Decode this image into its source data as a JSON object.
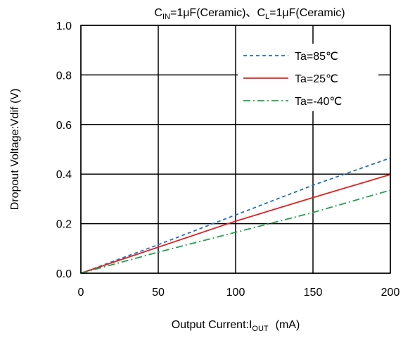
{
  "chart_data": {
    "type": "line",
    "title_parts": {
      "cin_prefix": "C",
      "cin_sub": "IN",
      "cin_value": "=1μF(Ceramic)",
      "separator": "、",
      "cl_prefix": "C",
      "cl_sub": "L",
      "cl_value": "=1μF(Ceramic)"
    },
    "xlabel_parts": {
      "text": "Output Current:I",
      "sub": "OUT",
      "unit": "(mA)"
    },
    "ylabel": "Dropout Voltage:Vdif  (V)",
    "xlim": [
      0,
      200
    ],
    "ylim": [
      0,
      1.0
    ],
    "x_ticks": [
      0,
      50,
      100,
      150,
      200
    ],
    "y_ticks": [
      0.0,
      0.2,
      0.4,
      0.6,
      0.8,
      1.0
    ],
    "x_tick_labels": [
      "0",
      "50",
      "100",
      "150",
      "200"
    ],
    "y_tick_labels": [
      "0.0",
      "0.2",
      "0.4",
      "0.6",
      "0.8",
      "1.0"
    ],
    "grid": true,
    "legend_position": "top-right",
    "series": [
      {
        "name": "Ta=85℃",
        "color": "#1f6fc5",
        "dash": "dashed",
        "x": [
          0,
          50,
          100,
          150,
          200
        ],
        "y": [
          0,
          0.115,
          0.235,
          0.355,
          0.465
        ]
      },
      {
        "name": "Ta=25℃",
        "color": "#e02020",
        "dash": "solid",
        "x": [
          0,
          50,
          100,
          150,
          200
        ],
        "y": [
          0,
          0.105,
          0.21,
          0.305,
          0.398
        ]
      },
      {
        "name": "Ta=-40℃",
        "color": "#22a050",
        "dash": "dashdot",
        "x": [
          0,
          50,
          100,
          150,
          200
        ],
        "y": [
          0,
          0.085,
          0.165,
          0.245,
          0.335
        ]
      }
    ]
  }
}
